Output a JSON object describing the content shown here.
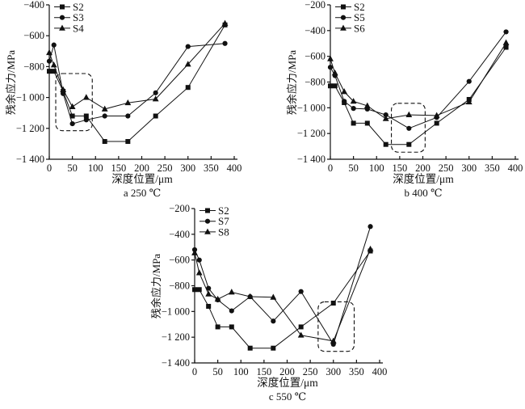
{
  "figure": {
    "background": "#ffffff",
    "line_color": "#111111",
    "text_color": "#111111"
  },
  "chart_data": [
    {
      "type": "line",
      "id": "a",
      "subtitle": "a 250 ℃",
      "xlabel": "深度位置/μm",
      "ylabel": "残余应力/MPa",
      "xlim": [
        0,
        400
      ],
      "ylim": [
        -1400,
        -400
      ],
      "x_ticks": [
        0,
        50,
        100,
        150,
        200,
        250,
        300,
        350,
        400
      ],
      "x_tick_labels": [
        "0",
        "50",
        "100",
        "150",
        "200",
        "250",
        "300",
        "350",
        "400"
      ],
      "y_ticks": [
        -400,
        -600,
        -800,
        -1000,
        -1200,
        -1400
      ],
      "y_tick_labels": [
        "−400",
        "−600",
        "−800",
        "−1 000",
        "−1 200",
        "−1 400"
      ],
      "grid": false,
      "legend_position": "top-left",
      "x": [
        0,
        10,
        30,
        50,
        80,
        120,
        170,
        230,
        300,
        380
      ],
      "series": [
        {
          "name": "S2",
          "marker": "square",
          "values": [
            -830,
            -830,
            -960,
            -1120,
            -1120,
            -1285,
            -1285,
            -1120,
            -935,
            -530
          ]
        },
        {
          "name": "S3",
          "marker": "circle",
          "values": [
            -765,
            -660,
            -975,
            -1170,
            -1145,
            -1120,
            -1120,
            -970,
            -670,
            -650
          ]
        },
        {
          "name": "S4",
          "marker": "triangle",
          "values": [
            -710,
            -790,
            -950,
            -1060,
            -1000,
            -1075,
            -1035,
            -1010,
            -785,
            -520
          ]
        }
      ],
      "annotation_box": {
        "x0": 14,
        "x1": 93,
        "y_top": -845,
        "y_bottom": -1215
      }
    },
    {
      "type": "line",
      "id": "b",
      "subtitle": "b 400 ℃",
      "xlabel": "深度位置/μm",
      "ylabel": "残余应力/MPa",
      "xlim": [
        0,
        400
      ],
      "ylim": [
        -1400,
        -200
      ],
      "x_ticks": [
        0,
        50,
        100,
        150,
        200,
        250,
        300,
        350,
        400
      ],
      "x_tick_labels": [
        "0",
        "50",
        "100",
        "150",
        "200",
        "250",
        "300",
        "350",
        "400"
      ],
      "y_ticks": [
        -200,
        -400,
        -600,
        -800,
        -1000,
        -1200,
        -1400
      ],
      "y_tick_labels": [
        "−200",
        "−400",
        "−600",
        "−800",
        "−1 000",
        "−1 200",
        "−1 400"
      ],
      "grid": false,
      "legend_position": "top-left",
      "x": [
        0,
        10,
        30,
        50,
        80,
        120,
        170,
        230,
        300,
        380
      ],
      "series": [
        {
          "name": "S2",
          "marker": "square",
          "values": [
            -830,
            -830,
            -960,
            -1120,
            -1120,
            -1285,
            -1285,
            -1120,
            -935,
            -530
          ]
        },
        {
          "name": "S5",
          "marker": "circle",
          "values": [
            -685,
            -750,
            -950,
            -1005,
            -1010,
            -1055,
            -1160,
            -1075,
            -795,
            -410
          ]
        },
        {
          "name": "S6",
          "marker": "triangle",
          "values": [
            -620,
            -730,
            -875,
            -950,
            -985,
            -1085,
            -1055,
            -1060,
            -955,
            -495
          ]
        }
      ],
      "annotation_box": {
        "x0": 132,
        "x1": 205,
        "y_top": -965,
        "y_bottom": -1345
      }
    },
    {
      "type": "line",
      "id": "c",
      "subtitle": "c 550 ℃",
      "xlabel": "深度位置/μm",
      "ylabel": "残余应力/MPa",
      "xlim": [
        0,
        400
      ],
      "ylim": [
        -1400,
        -200
      ],
      "x_ticks": [
        0,
        50,
        100,
        150,
        200,
        250,
        300,
        350,
        400
      ],
      "x_tick_labels": [
        "0",
        "50",
        "100",
        "150",
        "200",
        "250",
        "300",
        "350",
        "400"
      ],
      "y_ticks": [
        -200,
        -400,
        -600,
        -800,
        -1000,
        -1200,
        -1400
      ],
      "y_tick_labels": [
        "−200",
        "−400",
        "−600",
        "−800",
        "−1 000",
        "−1 200",
        "−1 400"
      ],
      "grid": false,
      "legend_position": "top-left",
      "x": [
        0,
        10,
        30,
        50,
        80,
        120,
        170,
        230,
        300,
        380
      ],
      "series": [
        {
          "name": "S2",
          "marker": "square",
          "values": [
            -830,
            -830,
            -960,
            -1120,
            -1120,
            -1285,
            -1285,
            -1120,
            -935,
            -530
          ]
        },
        {
          "name": "S7",
          "marker": "circle",
          "values": [
            -520,
            -600,
            -820,
            -910,
            -995,
            -885,
            -1075,
            -845,
            -1255,
            -340
          ]
        },
        {
          "name": "S8",
          "marker": "triangle",
          "values": [
            -545,
            -700,
            -865,
            -905,
            -850,
            -885,
            -890,
            -1185,
            -1230,
            -515
          ]
        }
      ],
      "annotation_box": {
        "x0": 267,
        "x1": 345,
        "y_top": -925,
        "y_bottom": -1310
      }
    }
  ]
}
